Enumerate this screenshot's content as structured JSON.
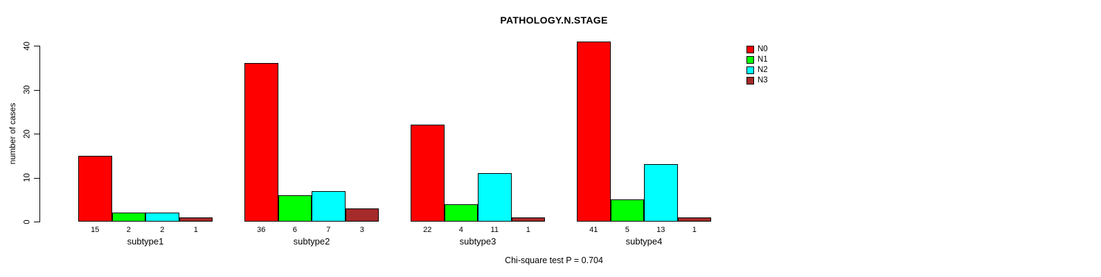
{
  "title": "PATHOLOGY.N.STAGE",
  "footer": "Chi-square test P = 0.704",
  "y_axis": {
    "label": "number of cases",
    "ticks": [
      0,
      10,
      20,
      30,
      40
    ]
  },
  "legend": {
    "position": "top-right",
    "items": [
      {
        "label": "N0",
        "color": "#FF0000"
      },
      {
        "label": "N1",
        "color": "#00FF00"
      },
      {
        "label": "N2",
        "color": "#00FFFF"
      },
      {
        "label": "N3",
        "color": "#A52A2A"
      }
    ]
  },
  "chart_data": {
    "type": "bar",
    "title": "PATHOLOGY.N.STAGE",
    "categories": [
      "subtype1",
      "subtype2",
      "subtype3",
      "subtype4"
    ],
    "series": [
      {
        "name": "N0",
        "color": "#FF0000",
        "values": [
          15,
          36,
          22,
          41
        ]
      },
      {
        "name": "N1",
        "color": "#00FF00",
        "values": [
          2,
          6,
          4,
          5
        ]
      },
      {
        "name": "N2",
        "color": "#00FFFF",
        "values": [
          2,
          7,
          11,
          13
        ]
      },
      {
        "name": "N3",
        "color": "#A52A2A",
        "values": [
          1,
          3,
          1,
          1
        ]
      }
    ],
    "bar_value_labels": [
      [
        15,
        2,
        2,
        1
      ],
      [
        36,
        6,
        7,
        3
      ],
      [
        22,
        4,
        11,
        1
      ],
      [
        41,
        5,
        13,
        1
      ]
    ],
    "xlabel": "",
    "ylabel": "number of cases",
    "ylim": [
      0,
      40
    ],
    "grid": false,
    "legend_position": "top-right",
    "annotation": "Chi-square test P = 0.704"
  }
}
